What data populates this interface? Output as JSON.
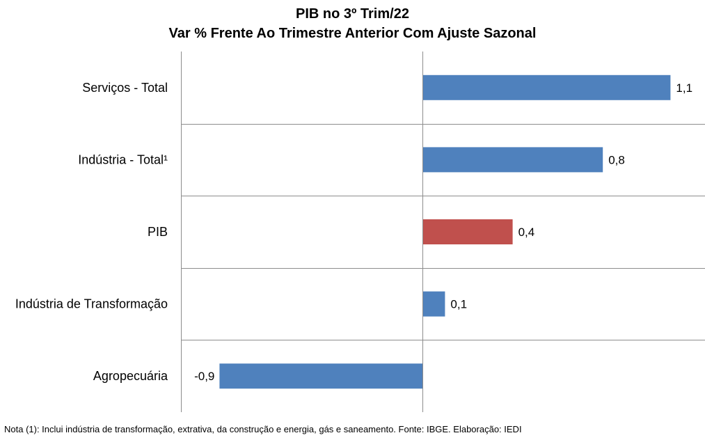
{
  "chart_data": {
    "type": "bar",
    "orientation": "horizontal",
    "title": "PIB no 3º Trim/22",
    "subtitle": "Var % Frente Ao Trimestre Anterior Com Ajuste Sazonal",
    "categories": [
      "Serviços - Total",
      "Indústria - Total¹",
      "PIB",
      "Indústria de Transformação",
      "Agropecuária"
    ],
    "values": [
      1.1,
      0.8,
      0.4,
      0.1,
      -0.9
    ],
    "value_labels": [
      "1,1",
      "0,8",
      "0,4",
      "0,1",
      "-0,9"
    ],
    "bar_colors": [
      "#4F81BD",
      "#4F81BD",
      "#C0504D",
      "#4F81BD",
      "#4F81BD"
    ],
    "xlim": [
      -1.0,
      1.25
    ],
    "grid": "horizontal separators between categories",
    "legend": "none"
  },
  "footnote": "Nota (1): Inclui indústria de transformação, extrativa, da construção e energia, gás e saneamento. Fonte: IBGE. Elaboração: IEDI"
}
